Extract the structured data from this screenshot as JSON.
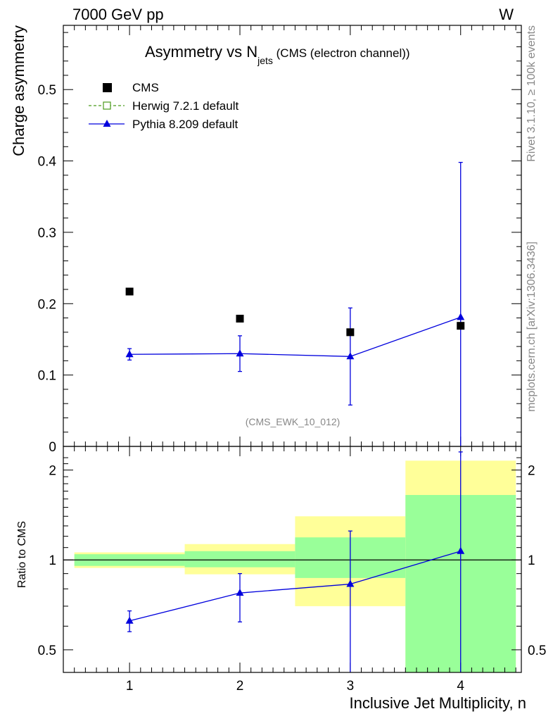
{
  "header": {
    "left": "7000 GeV pp",
    "right": "W"
  },
  "title": {
    "main": "Asymmetry vs N",
    "sub": "jets",
    "suffix": " (CMS (electron channel))"
  },
  "side_labels": {
    "rivet": "Rivet 3.1.10, ≥ 100k events",
    "mcplots": "mcplots.cern.ch [arXiv:1306.3436]"
  },
  "watermark": "(CMS_EWK_10_012)",
  "legend": [
    {
      "label": "CMS",
      "marker": "filled-square",
      "color": "#000000"
    },
    {
      "label": "Herwig 7.2.1 default",
      "marker": "open-square-dashed",
      "color": "#4a9a1a"
    },
    {
      "label": "Pythia 8.209 default",
      "marker": "triangle-line",
      "color": "#0000dd"
    }
  ],
  "colors": {
    "data": "#000000",
    "pythia": "#0000dd",
    "herwig": "#4a9a1a",
    "band_outer": "#ffff99",
    "band_inner": "#99ff99"
  },
  "chart_data": [
    {
      "type": "scatter",
      "panel": "main",
      "title": "Asymmetry vs N_jets (CMS (electron channel))",
      "xlabel": "Inclusive Jet Multiplicity, n",
      "ylabel": "Charge asymmetry",
      "xlim": [
        0.4,
        4.55
      ],
      "ylim": [
        0,
        0.59
      ],
      "x_ticks": [
        "1",
        "2",
        "3",
        "4"
      ],
      "y_ticks": [
        "0",
        "0.1",
        "0.2",
        "0.3",
        "0.4",
        "0.5"
      ],
      "x": [
        1,
        2,
        3,
        4
      ],
      "series": [
        {
          "name": "CMS",
          "values": [
            0.217,
            0.179,
            0.16,
            0.169
          ],
          "errors": [
            0.003,
            0.003,
            0.004,
            0.005
          ]
        },
        {
          "name": "Pythia 8.209 default",
          "values": [
            0.129,
            0.13,
            0.126,
            0.181
          ],
          "errors": [
            0.008,
            0.025,
            0.068,
            0.217
          ]
        }
      ]
    },
    {
      "type": "scatter",
      "panel": "ratio",
      "ylabel": "Ratio to CMS",
      "scale": "log",
      "ylim": [
        0.42,
        2.4
      ],
      "y_ticks": [
        "0.5",
        "1",
        "2"
      ],
      "x": [
        1,
        2,
        3,
        4
      ],
      "bin_edges": [
        [
          0.5,
          1.5
        ],
        [
          1.5,
          2.5
        ],
        [
          2.5,
          3.5
        ],
        [
          3.5,
          4.5
        ]
      ],
      "band_inner": [
        [
          0.955,
          1.045
        ],
        [
          0.945,
          1.07
        ],
        [
          0.87,
          1.19
        ],
        [
          0.34,
          1.65
        ]
      ],
      "band_outer": [
        [
          0.94,
          1.06
        ],
        [
          0.895,
          1.13
        ],
        [
          0.7,
          1.4
        ],
        [
          0.34,
          2.15
        ]
      ],
      "series": [
        {
          "name": "Pythia 8.209 default",
          "values": [
            0.625,
            0.775,
            0.83,
            1.07
          ],
          "err_low": [
            0.05,
            0.155,
            0.5,
            0.7
          ],
          "err_high": [
            0.05,
            0.125,
            0.42,
            1.23
          ]
        }
      ]
    }
  ]
}
